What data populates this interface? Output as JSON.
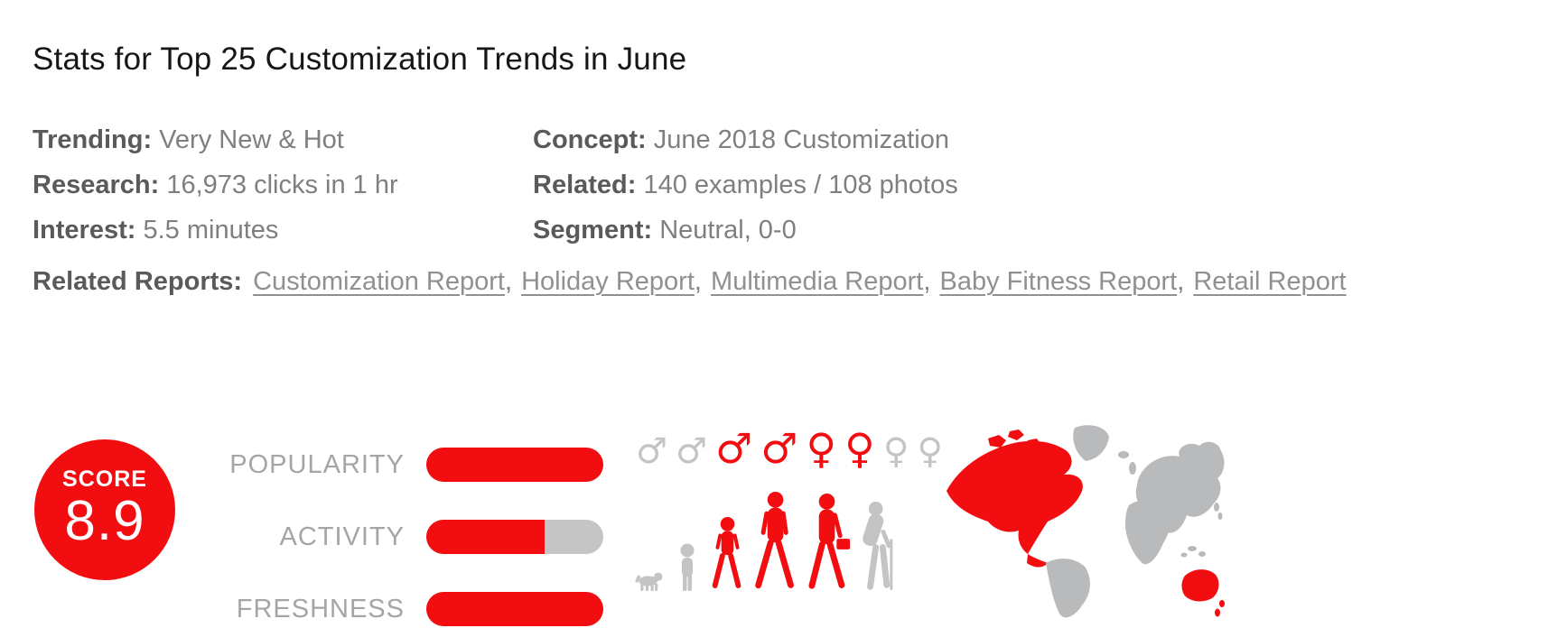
{
  "page": {
    "title": "Stats for Top 25 Customization Trends in June"
  },
  "meta": {
    "left": [
      {
        "label": "Trending:",
        "value": "Very New & Hot"
      },
      {
        "label": "Research:",
        "value": "16,973 clicks in 1 hr"
      },
      {
        "label": "Interest:",
        "value": "5.5 minutes"
      }
    ],
    "right": [
      {
        "label": "Concept:",
        "value": "June 2018 Customization"
      },
      {
        "label": "Related:",
        "value": "140 examples / 108 photos"
      },
      {
        "label": "Segment:",
        "value": "Neutral, 0-0"
      }
    ]
  },
  "related_reports": {
    "label": "Related Reports:",
    "separator": ",",
    "links": [
      "Customization Report",
      "Holiday Report",
      "Multimedia Report",
      "Baby Fitness Report",
      "Retail Report"
    ]
  },
  "score": {
    "label": "SCORE",
    "value": "8.9"
  },
  "bars": [
    {
      "label": "POPULARITY",
      "fill_pct": 100
    },
    {
      "label": "ACTIVITY",
      "fill_pct": 67
    },
    {
      "label": "FRESHNESS",
      "fill_pct": 100
    }
  ],
  "demographics": {
    "genders": [
      {
        "symbol": "♂",
        "state": "off"
      },
      {
        "symbol": "♂",
        "state": "off"
      },
      {
        "symbol": "♂",
        "state": "on"
      },
      {
        "symbol": "♂",
        "state": "on"
      },
      {
        "symbol": "♀",
        "state": "on"
      },
      {
        "symbol": "♀",
        "state": "on"
      },
      {
        "symbol": "♀",
        "state": "off"
      },
      {
        "symbol": "♀",
        "state": "off"
      }
    ],
    "ages": [
      {
        "name": "dog",
        "state": "off"
      },
      {
        "name": "toddler",
        "state": "off"
      },
      {
        "name": "child",
        "state": "on"
      },
      {
        "name": "adult",
        "state": "on"
      },
      {
        "name": "businessman",
        "state": "on"
      },
      {
        "name": "senior",
        "state": "off"
      }
    ]
  },
  "map": {
    "regions": [
      {
        "name": "north-america",
        "state": "on"
      },
      {
        "name": "greenland",
        "state": "off"
      },
      {
        "name": "south-america",
        "state": "off"
      },
      {
        "name": "eurasia",
        "state": "off"
      },
      {
        "name": "africa",
        "state": "off"
      },
      {
        "name": "australia",
        "state": "on"
      },
      {
        "name": "new-zealand",
        "state": "on"
      }
    ]
  },
  "colors": {
    "red": "#f20d11",
    "title": "#161616",
    "label-gray": "#595a5c",
    "value-gray": "#7e7f82",
    "link-gray": "#8f9093",
    "barlabel-gray": "#a4a5a7",
    "bar-gray": "#c5c5c5",
    "fig-gray": "#c4c4c5",
    "map-gray": "#b9babc"
  }
}
